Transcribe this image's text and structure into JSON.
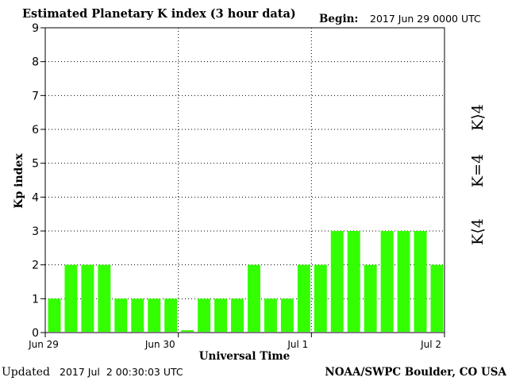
{
  "header": {
    "title": "Estimated Planetary K index (3 hour data)",
    "begin_label": "Begin:",
    "begin_value": "2017 Jun 29 0000 UTC"
  },
  "footer": {
    "updated_label": "Updated",
    "updated_value": "2017 Jul  2 00:30:03 UTC",
    "source": "NOAA/SWPC Boulder, CO USA"
  },
  "legend": {
    "gt4": "K⟩4",
    "eq4": "K=4",
    "lt4": "K⟨4",
    "colors": {
      "gt4": "#ff2a00",
      "eq4": "#ffd700",
      "lt4": "#33ff00"
    }
  },
  "chart_data": {
    "type": "bar",
    "xlabel": "Universal Time",
    "ylabel": "Kp index",
    "ylim": [
      0,
      9
    ],
    "yticks": [
      "0",
      "1",
      "2",
      "3",
      "4",
      "5",
      "6",
      "7",
      "8",
      "9"
    ],
    "grid": true,
    "bar_color": "#33ff00",
    "x_tick_labels": [
      "Jun 29",
      "Jun 30",
      "Jul 1",
      "Jul 2"
    ],
    "categories": [
      "Jun 29 00",
      "Jun 29 03",
      "Jun 29 06",
      "Jun 29 09",
      "Jun 29 12",
      "Jun 29 15",
      "Jun 29 18",
      "Jun 29 21",
      "Jun 30 00",
      "Jun 30 03",
      "Jun 30 06",
      "Jun 30 09",
      "Jun 30 12",
      "Jun 30 15",
      "Jun 30 18",
      "Jun 30 21",
      "Jul 1 00",
      "Jul 1 03",
      "Jul 1 06",
      "Jul 1 09",
      "Jul 1 12",
      "Jul 1 15",
      "Jul 1 18",
      "Jul 1 21"
    ],
    "values": [
      1,
      2,
      2,
      2,
      1,
      1,
      1,
      1,
      0.07,
      1,
      1,
      1,
      2,
      1,
      1,
      2,
      2,
      3,
      3,
      2,
      3,
      3,
      3,
      2
    ]
  }
}
